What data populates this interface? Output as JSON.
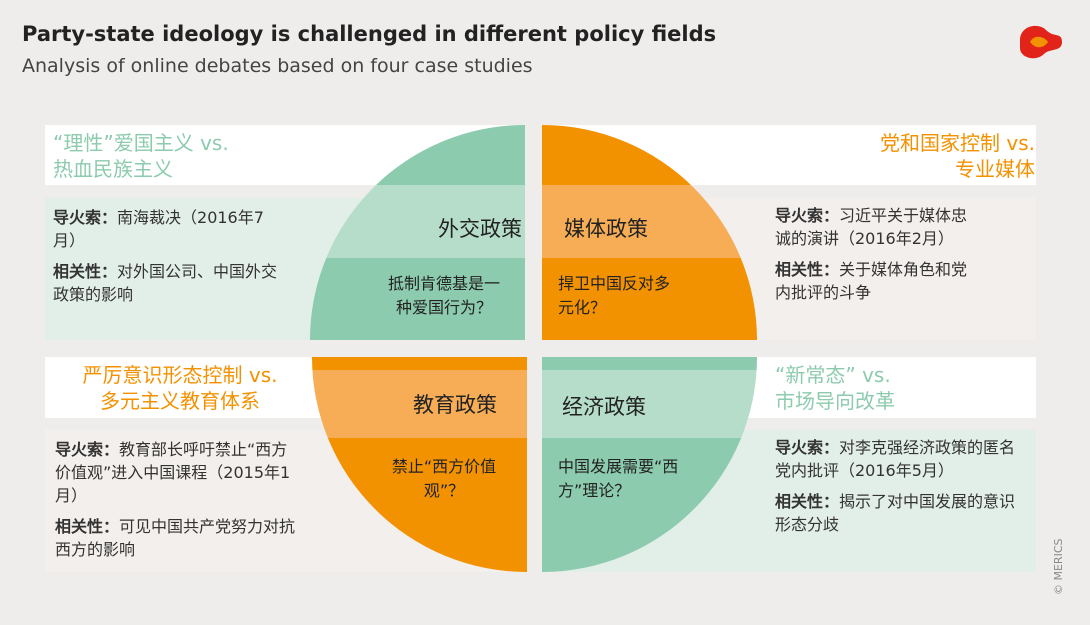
{
  "header": {
    "title": "Party-state ideology is challenged in different policy fields",
    "subtitle": "Analysis of online debates based on four case studies"
  },
  "quadrants": [
    {
      "heading": [
        "“理性”爱国主义 vs.",
        "热血民族主义"
      ],
      "field": "外交政策",
      "question": [
        "抵制肯德基是一",
        "种爱国行为？"
      ],
      "trigger_label": "导火索：",
      "trigger": "南海裁决（2016年7月）",
      "relevance_label": "相关性：",
      "relevance": "对外国公司、中国外交政策的影响"
    },
    {
      "heading": [
        "党和国家控制 vs.",
        "专业媒体"
      ],
      "field": "媒体政策",
      "question": [
        "捍卫中国反对多",
        "元化？"
      ],
      "trigger_label": "导火索：",
      "trigger": "习近平关于媒体忠诚的演讲（2016年2月）",
      "relevance_label": "相关性：",
      "relevance": "关于媒体角色和党内批评的斗争"
    },
    {
      "heading": [
        "严厉意识形态控制 vs.",
        "多元主义教育体系"
      ],
      "field": "教育政策",
      "question": [
        "禁止“西方价值",
        "观”？"
      ],
      "trigger_label": "导火索：",
      "trigger": "教育部长呼吁禁止“西方价值观”进入中国课程（2015年1月）",
      "relevance_label": "相关性：",
      "relevance": "可见中国共产党努力对抗西方的影响"
    },
    {
      "heading": [
        "“新常态” vs.",
        "市场导向改革"
      ],
      "field": "经济政策",
      "question": [
        "中国发展需要“西",
        "方”理论？"
      ],
      "trigger_label": "导火索：",
      "trigger": "对李克强经济政策的匿名党内批评（2016年5月）",
      "relevance_label": "相关性：",
      "relevance": "揭示了对中国发展的意识形态分歧"
    }
  ],
  "copyright": "© MERICS"
}
